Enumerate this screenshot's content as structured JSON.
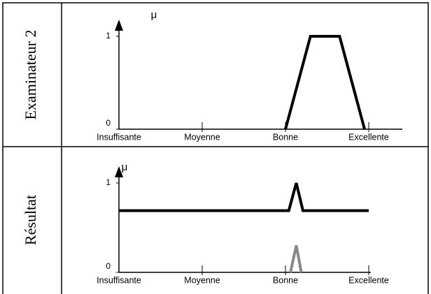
{
  "chart_data": [
    {
      "type": "line",
      "title": "Examinateur 2",
      "ylabel": "μ",
      "x": [
        2,
        2.3,
        2.65,
        2.95
      ],
      "series": [
        {
          "color": "#000000",
          "values": [
            0,
            1,
            1,
            0
          ]
        }
      ],
      "xlim": [
        0,
        3
      ],
      "xticks": [
        {
          "value": 0,
          "label": "Insuffisante"
        },
        {
          "value": 1,
          "label": "Moyenne"
        },
        {
          "value": 2,
          "label": "Bonne"
        },
        {
          "value": 3,
          "label": "Excellente"
        }
      ],
      "ylim": [
        0,
        1
      ],
      "yticks": [
        0,
        1
      ]
    },
    {
      "type": "line",
      "title": "Résultat",
      "ylabel": "μ",
      "x": [
        0,
        2.04,
        2.13,
        2.21,
        3
      ],
      "series": [
        {
          "color": "#000000",
          "values": [
            0.69,
            0.69,
            1,
            0.69,
            0.69
          ]
        }
      ],
      "x2": [
        2.06,
        2.13,
        2.19
      ],
      "series2": [
        {
          "color": "#888888",
          "values": [
            0,
            0.3,
            0
          ]
        }
      ],
      "xlim": [
        0,
        3
      ],
      "xticks": [
        {
          "value": 0,
          "label": "Insuffisante"
        },
        {
          "value": 1,
          "label": "Moyenne"
        },
        {
          "value": 2,
          "label": "Bonne"
        },
        {
          "value": 3,
          "label": "Excellente"
        }
      ],
      "ylim": [
        0,
        1
      ],
      "yticks": [
        0,
        1
      ]
    }
  ]
}
